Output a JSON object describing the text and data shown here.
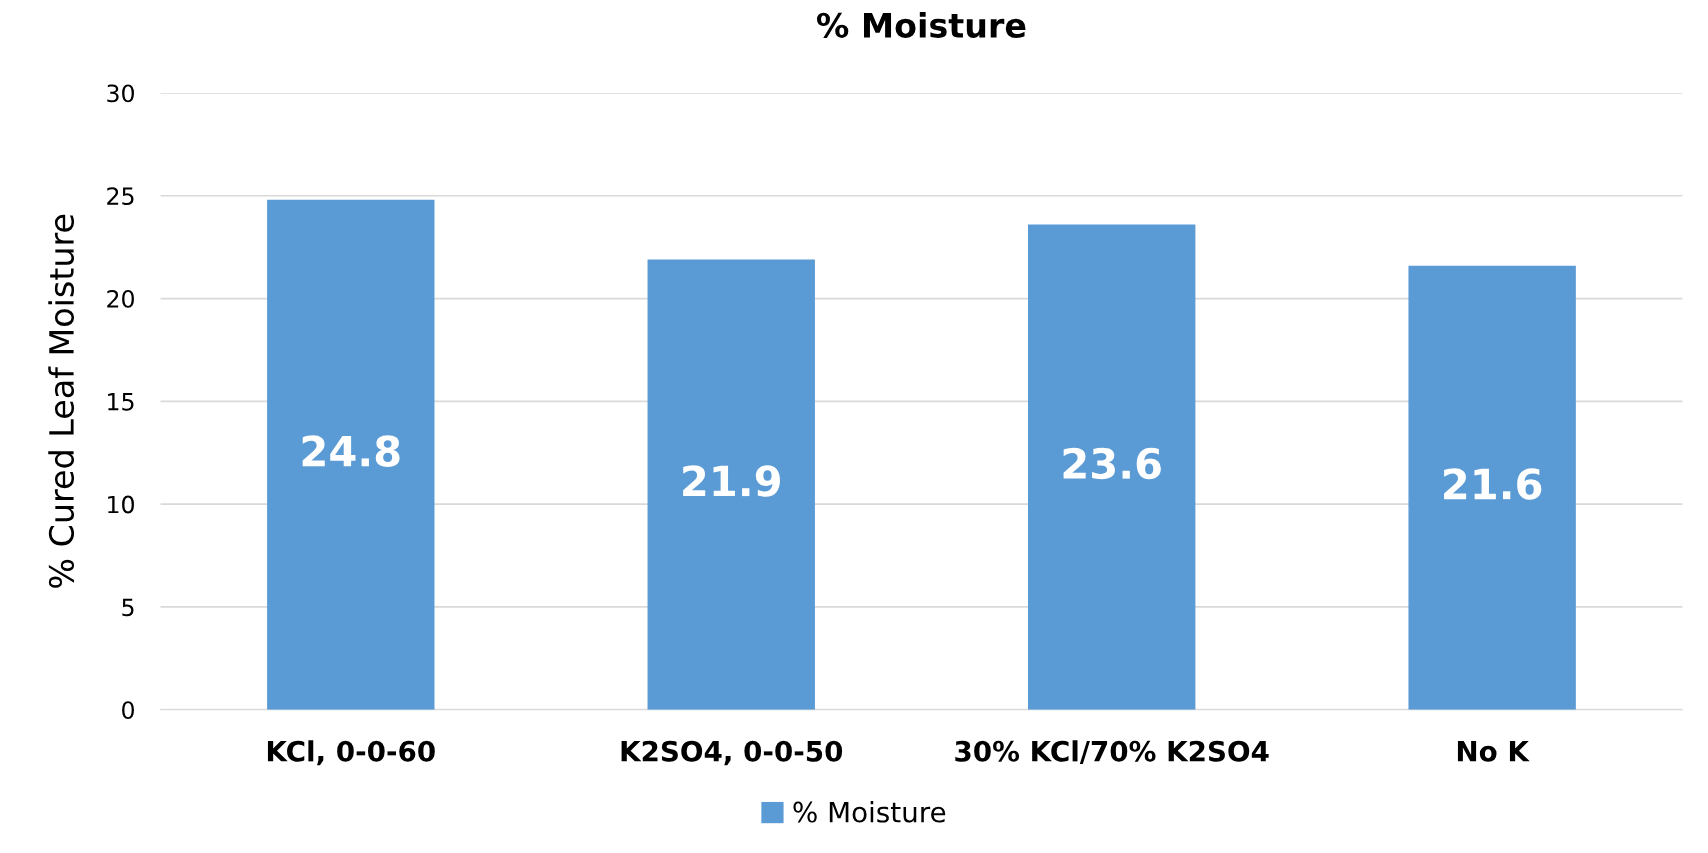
{
  "chart_data": {
    "type": "bar",
    "title": "% Moisture",
    "ylabel": "% Cured Leaf Moisture",
    "categories": [
      "KCl, 0-0-60",
      "K2SO4, 0-0-50",
      "30% KCl/70% K2SO4",
      "No K"
    ],
    "series": [
      {
        "name": "% Moisture",
        "color": "#5b9bd5",
        "values": [
          24.8,
          21.9,
          23.6,
          21.6
        ]
      }
    ],
    "ylim": [
      0,
      30
    ],
    "yticks": [
      0,
      5,
      10,
      15,
      20,
      25,
      30
    ],
    "grid": "y",
    "legend": "bottom",
    "data_labels": true
  }
}
